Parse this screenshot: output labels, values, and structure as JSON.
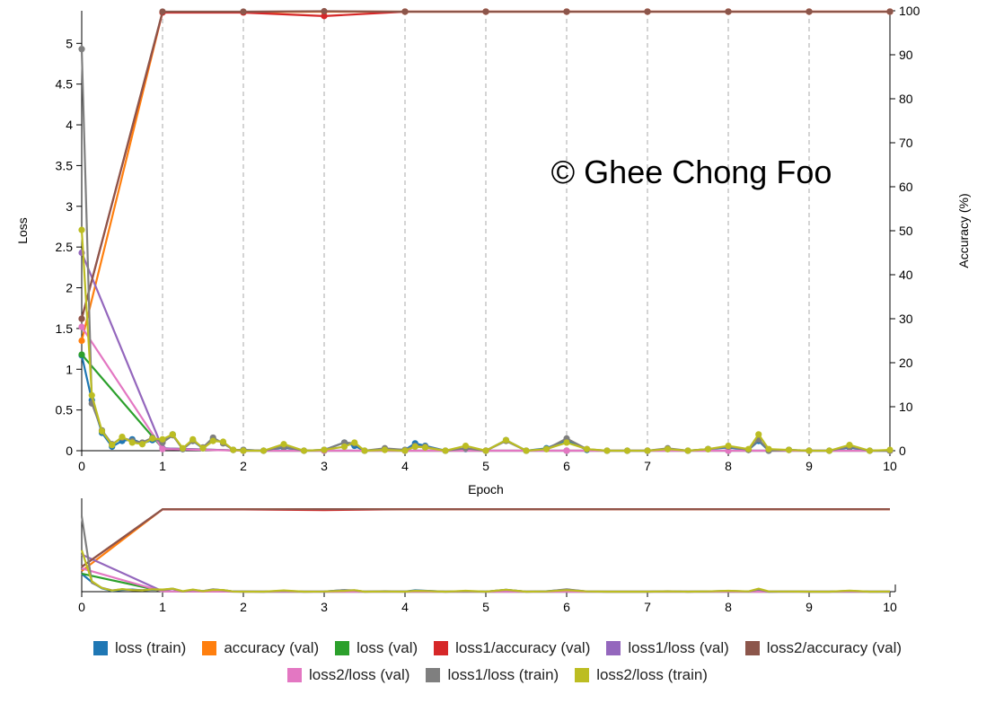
{
  "chart_data": {
    "type": "line",
    "title": "",
    "watermark": "© Ghee Chong Foo",
    "xlabel": "Epoch",
    "ylabel_left": "Loss",
    "ylabel_right": "Accuracy (%)",
    "xlim": [
      0,
      10
    ],
    "ylim_left": [
      0,
      5.4
    ],
    "ylim_right": [
      0,
      100
    ],
    "x_ticks": [
      "0",
      "1",
      "2",
      "3",
      "4",
      "5",
      "6",
      "7",
      "8",
      "9",
      "10"
    ],
    "y_left_ticks": [
      "0",
      "0.5",
      "1",
      "1.5",
      "2",
      "2.5",
      "3",
      "3.5",
      "4",
      "4.5",
      "5"
    ],
    "y_right_ticks": [
      "0",
      "10",
      "20",
      "30",
      "40",
      "50",
      "60",
      "70",
      "80",
      "90",
      "100"
    ],
    "grid": "vertical dashed",
    "legend_position": "bottom",
    "series": [
      {
        "name": "loss (train)",
        "color": "#1f77b4",
        "axis": "left",
        "x": [
          0,
          0.125,
          0.25,
          0.375,
          0.5,
          0.625,
          0.75,
          0.875,
          1,
          1.125,
          1.25,
          1.375,
          1.5,
          1.625,
          1.75,
          1.875,
          2,
          2.25,
          2.5,
          2.75,
          3,
          3.25,
          3.375,
          3.5,
          3.75,
          4,
          4.125,
          4.25,
          4.5,
          4.75,
          5,
          5.25,
          5.5,
          5.75,
          6,
          6.25,
          6.5,
          6.75,
          7,
          7.25,
          7.5,
          7.75,
          8,
          8.25,
          8.375,
          8.5,
          8.75,
          9,
          9.25,
          9.5,
          9.75,
          10
        ],
        "y": [
          1.17,
          0.62,
          0.22,
          0.05,
          0.12,
          0.14,
          0.09,
          0.13,
          0.12,
          0.2,
          0.02,
          0.12,
          0.03,
          0.14,
          0.1,
          0.01,
          0.01,
          0.0,
          0.04,
          0.0,
          0.01,
          0.1,
          0.06,
          0.0,
          0.02,
          0.01,
          0.09,
          0.06,
          0.0,
          0.02,
          0.0,
          0.13,
          0.0,
          0.03,
          0.13,
          0.01,
          0.0,
          0.0,
          0.0,
          0.02,
          0.0,
          0.02,
          0.04,
          0.01,
          0.12,
          0.0,
          0.01,
          0.0,
          0.0,
          0.04,
          0.0,
          0.0
        ]
      },
      {
        "name": "accuracy (val)",
        "color": "#ff7f0e",
        "axis": "right",
        "x": [
          0,
          1,
          2,
          3,
          4,
          5,
          6,
          7,
          8,
          9,
          10
        ],
        "y": [
          25,
          99.7,
          99.7,
          99.8,
          99.8,
          99.8,
          99.8,
          99.8,
          99.8,
          99.8,
          99.8
        ]
      },
      {
        "name": "loss (val)",
        "color": "#2ca02c",
        "axis": "left",
        "x": [
          0,
          1,
          2,
          3,
          4,
          5,
          6,
          7,
          8,
          9,
          10
        ],
        "y": [
          1.18,
          0.03,
          0.0,
          0.0,
          0.0,
          0.0,
          0.0,
          0.0,
          0.0,
          0.0,
          0.0
        ]
      },
      {
        "name": "loss1/accuracy (val)",
        "color": "#d62728",
        "axis": "right",
        "x": [
          0,
          1,
          2,
          3,
          4,
          5,
          6,
          7,
          8,
          9,
          10
        ],
        "y": [
          30,
          99.6,
          99.6,
          98.8,
          99.8,
          99.8,
          99.8,
          99.8,
          99.8,
          99.8,
          99.8
        ]
      },
      {
        "name": "loss1/loss (val)",
        "color": "#9467bd",
        "axis": "left",
        "x": [
          0,
          1,
          2,
          3,
          4,
          5,
          6,
          7,
          8,
          9,
          10
        ],
        "y": [
          2.43,
          0.03,
          0.0,
          0.0,
          0.0,
          0.0,
          0.0,
          0.0,
          0.0,
          0.0,
          0.0
        ]
      },
      {
        "name": "loss2/accuracy (val)",
        "color": "#8c564b",
        "axis": "right",
        "x": [
          0,
          1,
          2,
          3,
          4,
          5,
          6,
          7,
          8,
          9,
          10
        ],
        "y": [
          30,
          99.8,
          99.8,
          99.9,
          99.8,
          99.8,
          99.8,
          99.8,
          99.8,
          99.8,
          99.8
        ]
      },
      {
        "name": "loss2/loss (val)",
        "color": "#e377c2",
        "axis": "left",
        "x": [
          0,
          1,
          2,
          3,
          4,
          5,
          6,
          7,
          8,
          9,
          10
        ],
        "y": [
          1.52,
          0.02,
          0.0,
          0.0,
          0.0,
          0.0,
          0.0,
          0.0,
          0.0,
          0.0,
          0.0
        ]
      },
      {
        "name": "loss1/loss (train)",
        "color": "#7f7f7f",
        "axis": "left",
        "x": [
          0,
          0.125,
          0.25,
          0.375,
          0.5,
          0.625,
          0.75,
          0.875,
          1,
          1.125,
          1.25,
          1.375,
          1.5,
          1.625,
          1.75,
          1.875,
          2,
          2.25,
          2.5,
          2.75,
          3,
          3.25,
          3.375,
          3.5,
          3.75,
          4,
          4.125,
          4.25,
          4.5,
          4.75,
          5,
          5.25,
          5.5,
          5.75,
          6,
          6.25,
          6.5,
          6.75,
          7,
          7.25,
          7.5,
          7.75,
          8,
          8.25,
          8.375,
          8.5,
          8.75,
          9,
          9.25,
          9.5,
          9.75,
          10
        ],
        "y": [
          4.93,
          0.58,
          0.25,
          0.08,
          0.16,
          0.12,
          0.1,
          0.16,
          0.1,
          0.19,
          0.02,
          0.12,
          0.04,
          0.16,
          0.09,
          0.01,
          0.01,
          0.0,
          0.05,
          0.0,
          0.01,
          0.1,
          0.09,
          0.0,
          0.03,
          0.01,
          0.06,
          0.05,
          0.0,
          0.03,
          0.0,
          0.12,
          0.0,
          0.02,
          0.15,
          0.02,
          0.0,
          0.0,
          0.0,
          0.03,
          0.0,
          0.02,
          0.05,
          0.01,
          0.14,
          0.0,
          0.01,
          0.0,
          0.0,
          0.05,
          0.0,
          0.0
        ]
      },
      {
        "name": "loss2/loss (train)",
        "color": "#bcbd22",
        "axis": "left",
        "x": [
          0,
          0.125,
          0.25,
          0.375,
          0.5,
          0.625,
          0.75,
          0.875,
          1,
          1.125,
          1.25,
          1.375,
          1.5,
          1.625,
          1.75,
          1.875,
          2,
          2.25,
          2.5,
          2.75,
          3,
          3.25,
          3.375,
          3.5,
          3.75,
          4,
          4.125,
          4.25,
          4.5,
          4.75,
          5,
          5.25,
          5.5,
          5.75,
          6,
          6.25,
          6.5,
          6.75,
          7,
          7.25,
          7.5,
          7.75,
          8,
          8.25,
          8.375,
          8.5,
          8.75,
          9,
          9.25,
          9.5,
          9.75,
          10
        ],
        "y": [
          2.71,
          0.68,
          0.24,
          0.07,
          0.17,
          0.1,
          0.08,
          0.15,
          0.14,
          0.2,
          0.03,
          0.14,
          0.03,
          0.12,
          0.11,
          0.01,
          0.0,
          0.0,
          0.08,
          0.0,
          0.01,
          0.05,
          0.1,
          0.0,
          0.01,
          0.0,
          0.05,
          0.04,
          0.0,
          0.06,
          0.0,
          0.13,
          0.0,
          0.02,
          0.1,
          0.02,
          0.0,
          0.0,
          0.0,
          0.02,
          0.0,
          0.02,
          0.06,
          0.02,
          0.2,
          0.02,
          0.01,
          0.0,
          0.0,
          0.07,
          0.0,
          0.01
        ]
      }
    ]
  }
}
